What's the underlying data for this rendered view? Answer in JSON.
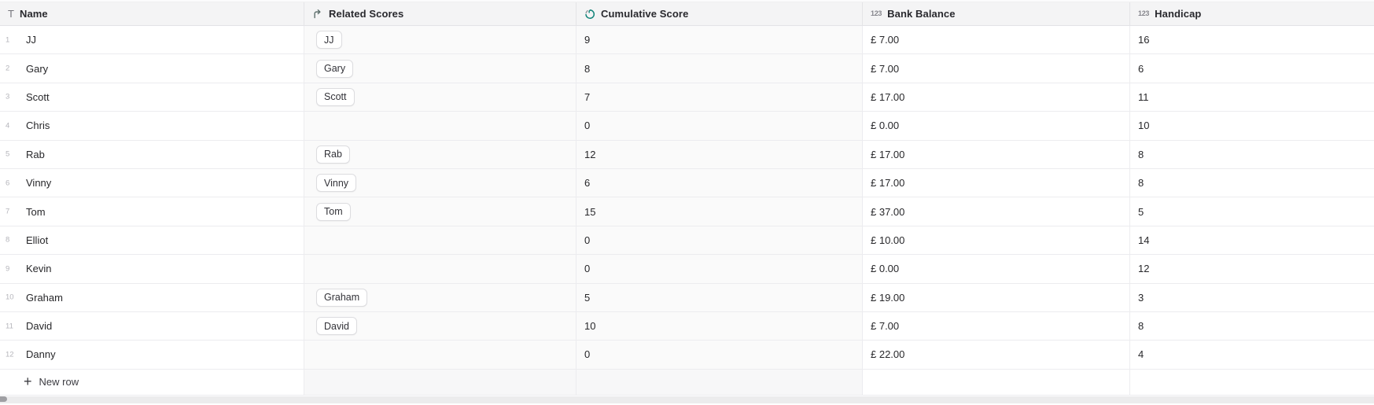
{
  "columns": [
    {
      "label": "Name",
      "icon": "text-field-icon"
    },
    {
      "label": "Related Scores",
      "icon": "link-field-icon"
    },
    {
      "label": "Cumulative Score",
      "icon": "rollup-field-icon"
    },
    {
      "label": "Bank Balance",
      "icon": "number-field-icon"
    },
    {
      "label": "Handicap",
      "icon": "number-field-icon"
    }
  ],
  "field_icons": {
    "text": "T",
    "number": "123"
  },
  "rows": [
    {
      "num": "1",
      "name": "JJ",
      "chips": [
        "JJ"
      ],
      "cumulative_score": "9",
      "bank_balance": "£ 7.00",
      "handicap": "16"
    },
    {
      "num": "2",
      "name": "Gary",
      "chips": [
        "Gary"
      ],
      "cumulative_score": "8",
      "bank_balance": "£ 7.00",
      "handicap": "6"
    },
    {
      "num": "3",
      "name": "Scott",
      "chips": [
        "Scott"
      ],
      "cumulative_score": "7",
      "bank_balance": "£ 17.00",
      "handicap": "11"
    },
    {
      "num": "4",
      "name": "Chris",
      "chips": [],
      "cumulative_score": "0",
      "bank_balance": "£ 0.00",
      "handicap": "10"
    },
    {
      "num": "5",
      "name": "Rab",
      "chips": [
        "Rab"
      ],
      "cumulative_score": "12",
      "bank_balance": "£ 17.00",
      "handicap": "8"
    },
    {
      "num": "6",
      "name": "Vinny",
      "chips": [
        "Vinny"
      ],
      "cumulative_score": "6",
      "bank_balance": "£ 17.00",
      "handicap": "8"
    },
    {
      "num": "7",
      "name": "Tom",
      "chips": [
        "Tom"
      ],
      "cumulative_score": "15",
      "bank_balance": "£ 37.00",
      "handicap": "5"
    },
    {
      "num": "8",
      "name": "Elliot",
      "chips": [],
      "cumulative_score": "0",
      "bank_balance": "£ 10.00",
      "handicap": "14"
    },
    {
      "num": "9",
      "name": "Kevin",
      "chips": [],
      "cumulative_score": "0",
      "bank_balance": "£ 0.00",
      "handicap": "12"
    },
    {
      "num": "10",
      "name": "Graham",
      "chips": [
        "Graham"
      ],
      "cumulative_score": "5",
      "bank_balance": "£ 19.00",
      "handicap": "3"
    },
    {
      "num": "11",
      "name": "David",
      "chips": [
        "David"
      ],
      "cumulative_score": "10",
      "bank_balance": "£ 7.00",
      "handicap": "8"
    },
    {
      "num": "12",
      "name": "Danny",
      "chips": [],
      "cumulative_score": "0",
      "bank_balance": "£ 22.00",
      "handicap": "4"
    }
  ],
  "footer": {
    "new_row_label": "New row",
    "plus_glyph": "+"
  },
  "colors": {
    "rollup_accent": "#12847a",
    "link_icon": "#5d6f6c",
    "header_bg": "#f4f4f5"
  }
}
